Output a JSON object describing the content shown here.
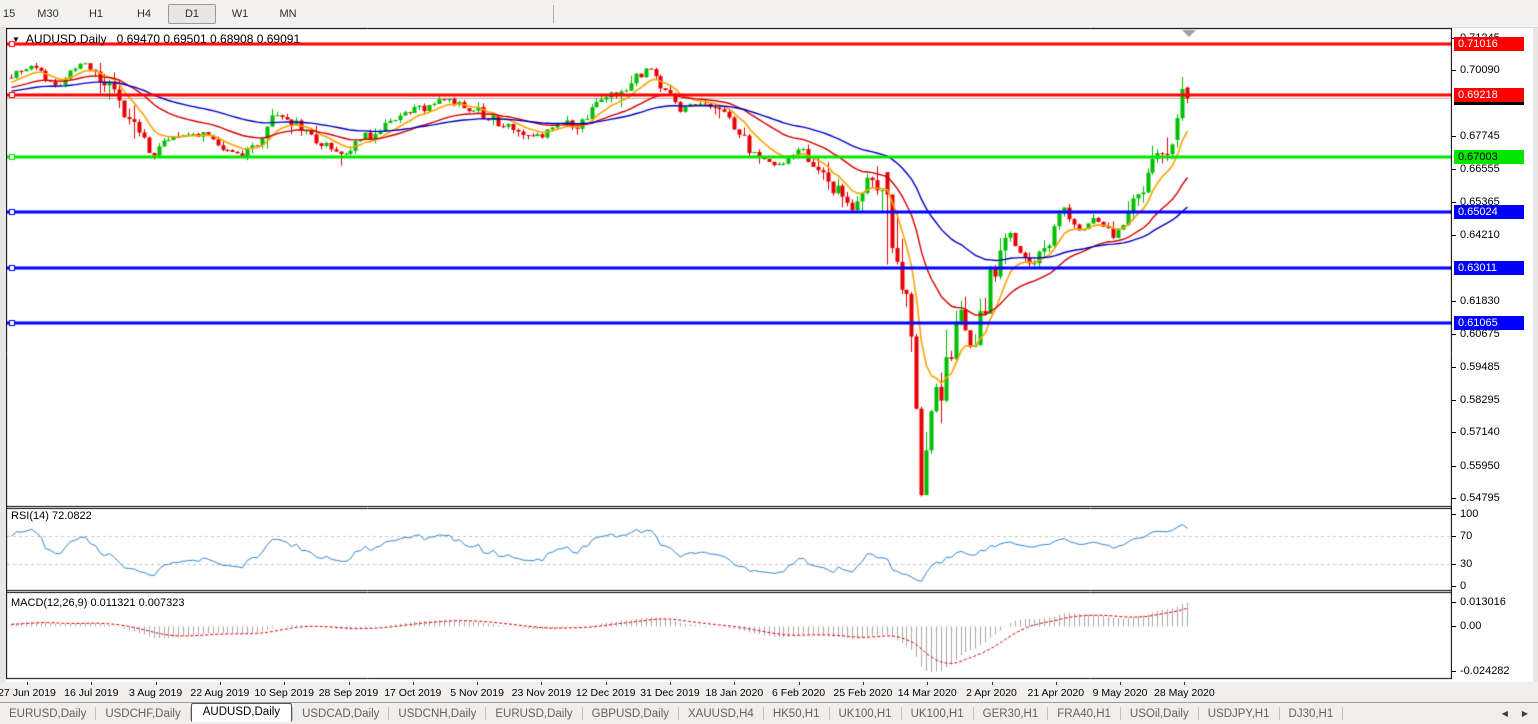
{
  "toolbar": {
    "timeframes": [
      {
        "label": "15",
        "active": false
      },
      {
        "label": "M30",
        "active": false
      },
      {
        "label": "H1",
        "active": false
      },
      {
        "label": "H4",
        "active": false
      },
      {
        "label": "D1",
        "active": true
      },
      {
        "label": "W1",
        "active": false
      },
      {
        "label": "MN",
        "active": false
      }
    ]
  },
  "icons": {
    "symbol_dropdown": "▼",
    "tab_prev": "◀",
    "tab_next": "▶"
  },
  "chart": {
    "title_symbol": "AUDUSD,Daily",
    "title_ohlc": "0.69470 0.69501 0.68908 0.69091"
  },
  "chart_data": {
    "type": "candlestick",
    "symbol": "AUDUSD",
    "timeframe": "Daily",
    "current_ohlc": {
      "open": 0.6947,
      "high": 0.69501,
      "low": 0.68908,
      "close": 0.69091
    },
    "current_price": 0.69091,
    "y_axis": {
      "min": 0.54795,
      "max": 0.71245,
      "ticks": [
        0.71245,
        0.7009,
        0.67745,
        0.66555,
        0.65365,
        0.6421,
        0.6183,
        0.60675,
        0.59485,
        0.58295,
        0.5714,
        0.5595,
        0.54795
      ]
    },
    "x_axis": {
      "labels": [
        "27 Jun 2019",
        "16 Jul 2019",
        "3 Aug 2019",
        "22 Aug 2019",
        "10 Sep 2019",
        "28 Sep 2019",
        "17 Oct 2019",
        "5 Nov 2019",
        "23 Nov 2019",
        "12 Dec 2019",
        "31 Dec 2019",
        "18 Jan 2020",
        "6 Feb 2020",
        "25 Feb 2020",
        "14 Mar 2020",
        "2 Apr 2020",
        "21 Apr 2020",
        "9 May 2020",
        "28 May 2020"
      ]
    },
    "levels": [
      {
        "value": 0.71016,
        "color": "#ff0000",
        "width": 3
      },
      {
        "value": 0.69218,
        "color": "#ff0000",
        "width": 3
      },
      {
        "value": 0.67003,
        "color": "#00e600",
        "width": 3
      },
      {
        "value": 0.65024,
        "color": "#0000ff",
        "width": 3
      },
      {
        "value": 0.63011,
        "color": "#0000ff",
        "width": 3
      },
      {
        "value": 0.61065,
        "color": "#0000ff",
        "width": 3
      }
    ],
    "axis_badges": [
      {
        "value": 0.71016,
        "bg": "#ff0000",
        "fg": "#ffffff"
      },
      {
        "value": 0.69091,
        "bg": "#000000",
        "fg": "#ffffff"
      },
      {
        "value": 0.69218,
        "bg": "#ff0000",
        "fg": "#ffffff"
      },
      {
        "value": 0.67003,
        "bg": "#00e600",
        "fg": "#000000"
      },
      {
        "value": 0.65024,
        "bg": "#0000ff",
        "fg": "#ffffff"
      },
      {
        "value": 0.63011,
        "bg": "#0000ff",
        "fg": "#ffffff"
      },
      {
        "value": 0.61065,
        "bg": "#0000ff",
        "fg": "#ffffff"
      }
    ],
    "colors": {
      "background": "#ffffff",
      "frame": "#000000",
      "current_price_line": "#b4b4b4",
      "scroll_marker": "#a0a0a0"
    },
    "candles": {
      "count": 240,
      "lead": 70,
      "seed": 20,
      "bull_color": "#00be00",
      "bear_color": "#e60000",
      "path": [
        [
          0,
          0.6985
        ],
        [
          0.02,
          0.703
        ],
        [
          0.038,
          0.6945
        ],
        [
          0.061,
          0.704
        ],
        [
          0.081,
          0.6975
        ],
        [
          0.102,
          0.684
        ],
        [
          0.119,
          0.67
        ],
        [
          0.137,
          0.6785
        ],
        [
          0.16,
          0.678
        ],
        [
          0.174,
          0.6755
        ],
        [
          0.198,
          0.669
        ],
        [
          0.224,
          0.6865
        ],
        [
          0.256,
          0.677
        ],
        [
          0.282,
          0.67
        ],
        [
          0.308,
          0.679
        ],
        [
          0.337,
          0.6855
        ],
        [
          0.369,
          0.6905
        ],
        [
          0.398,
          0.686
        ],
        [
          0.424,
          0.68
        ],
        [
          0.451,
          0.6765
        ],
        [
          0.465,
          0.683
        ],
        [
          0.483,
          0.681
        ],
        [
          0.5,
          0.6885
        ],
        [
          0.544,
          0.702
        ],
        [
          0.567,
          0.687
        ],
        [
          0.59,
          0.69
        ],
        [
          0.613,
          0.683
        ],
        [
          0.634,
          0.669
        ],
        [
          0.654,
          0.667
        ],
        [
          0.672,
          0.6725
        ],
        [
          0.692,
          0.662
        ],
        [
          0.715,
          0.6515
        ],
        [
          0.73,
          0.6625
        ],
        [
          0.744,
          0.658
        ],
        [
          0.753,
          0.629
        ],
        [
          0.765,
          0.612
        ],
        [
          0.773,
          0.5545
        ],
        [
          0.785,
          0.582
        ],
        [
          0.794,
          0.5905
        ],
        [
          0.808,
          0.6135
        ],
        [
          0.817,
          0.5995
        ],
        [
          0.831,
          0.622
        ],
        [
          0.849,
          0.6435
        ],
        [
          0.858,
          0.635
        ],
        [
          0.872,
          0.6315
        ],
        [
          0.895,
          0.651
        ],
        [
          0.907,
          0.6425
        ],
        [
          0.919,
          0.648
        ],
        [
          0.939,
          0.6415
        ],
        [
          0.956,
          0.6555
        ],
        [
          0.971,
          0.6655
        ],
        [
          0.988,
          0.679
        ],
        [
          1,
          0.6909
        ]
      ],
      "lead_path": [
        [
          -0.3,
          0.688
        ],
        [
          -0.22,
          0.696
        ],
        [
          -0.15,
          0.69
        ],
        [
          -0.08,
          0.693
        ],
        [
          -0.02,
          0.695
        ]
      ],
      "spikes": [
        {
          "i": 67,
          "low": 0.6668
        },
        {
          "i": 178,
          "o": 0.6645,
          "c": 0.6565,
          "low": 0.6315
        },
        {
          "i": 185,
          "low": 0.5485
        }
      ],
      "final_candles": [
        {
          "o": 0.676,
          "h": 0.6852,
          "l": 0.6732,
          "c": 0.6838
        },
        {
          "o": 0.6838,
          "h": 0.6985,
          "l": 0.6828,
          "c": 0.6942
        },
        {
          "o": 0.6947,
          "h": 0.69501,
          "l": 0.68908,
          "c": 0.69091
        }
      ]
    },
    "moving_averages": [
      {
        "period": 8,
        "color": "#ffa200",
        "width": 1.6
      },
      {
        "period": 24,
        "color": "#d40000",
        "width": 1.4
      },
      {
        "period": 52,
        "color": "#0000c0",
        "width": 1.4
      }
    ],
    "rsi": {
      "label": "RSI(14) 72.0822",
      "period": 14,
      "value": 72.0822,
      "overbought": 70,
      "oversold": 30,
      "color": "#2e86d6",
      "level_color": "#c8c8c8",
      "axis": [
        {
          "label": "100",
          "value": 100
        },
        {
          "label": "70",
          "value": 70
        },
        {
          "label": "30",
          "value": 30
        },
        {
          "label": "0",
          "value": 0
        }
      ]
    },
    "macd": {
      "label": "MACD(12,26,9) 0.011321 0.007323",
      "fast": 12,
      "slow": 26,
      "signal_period": 9,
      "macd_value": 0.011321,
      "signal_value": 0.007323,
      "hist_color": "#a8a8a8",
      "signal_color": "#e00000",
      "axis": [
        {
          "label": "0.013016",
          "value": 0.013016
        },
        {
          "label": "0.00",
          "value": 0
        },
        {
          "label": "-0.024282",
          "value": -0.024282
        }
      ]
    }
  },
  "tabs": {
    "active_index": 2,
    "items": [
      "EURUSD,Daily",
      "USDCHF,Daily",
      "AUDUSD,Daily",
      "USDCAD,Daily",
      "USDCNH,Daily",
      "EURUSD,Daily",
      "GBPUSD,Daily",
      "XAUUSD,H4",
      "HK50,H1",
      "UK100,H1",
      "UK100,H1",
      "GER30,H1",
      "FRA40,H1",
      "USOil,Daily",
      "USDJPY,H1",
      "DJ30,H1"
    ]
  }
}
